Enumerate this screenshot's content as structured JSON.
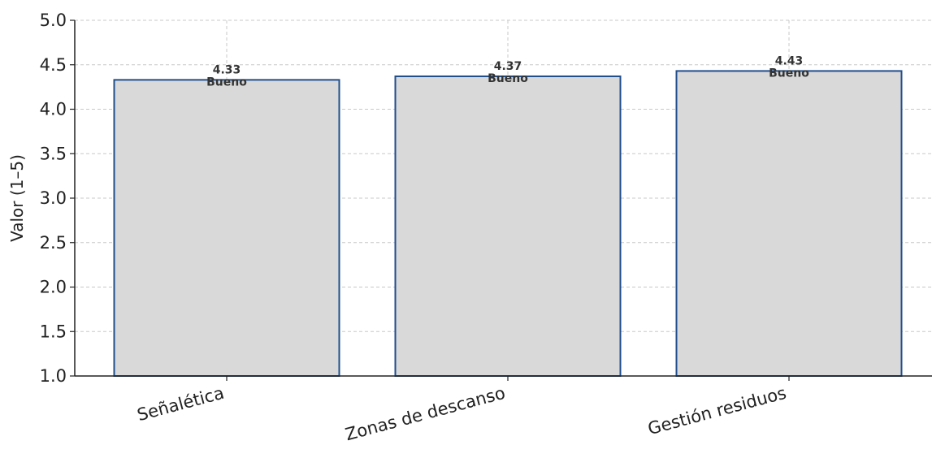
{
  "chart_data": {
    "type": "bar",
    "categories": [
      "Señalética",
      "Zonas de descanso",
      "Gestión residuos"
    ],
    "values": [
      4.33,
      4.37,
      4.43
    ],
    "value_labels": [
      "4.33",
      "4.37",
      "4.43"
    ],
    "rating_labels": [
      "Bueno",
      "Bueno",
      "Bueno"
    ],
    "ylabel": "Valor (1–5)",
    "ylim": [
      1.0,
      5.0
    ],
    "yticks": [
      1.0,
      1.5,
      2.0,
      2.5,
      3.0,
      3.5,
      4.0,
      4.5,
      5.0
    ],
    "ytick_labels": [
      "1.0",
      "1.5",
      "2.0",
      "2.5",
      "3.0",
      "3.5",
      "4.0",
      "4.5",
      "5.0"
    ],
    "grid": true,
    "colors": {
      "bar_fill": "#d9d9d9",
      "bar_edge": "#1f4e8c",
      "grid": "#c8c8c8",
      "axis": "#222222"
    }
  }
}
